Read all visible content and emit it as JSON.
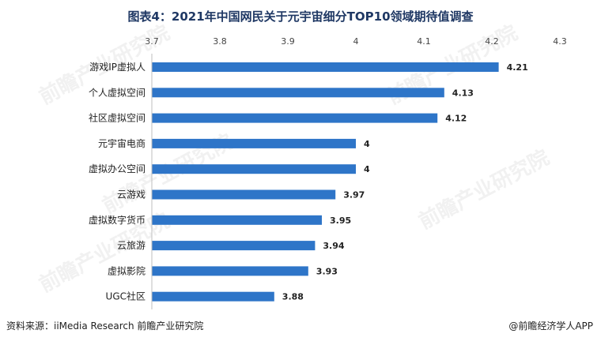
{
  "chart_data": {
    "type": "bar",
    "orientation": "horizontal",
    "title": "图表4：2021年中国网民关于元宇宙细分TOP10领域期待值调查",
    "categories": [
      "游戏IP虚拟人",
      "个人虚拟空间",
      "社区虚拟空间",
      "元宇宙电商",
      "虚拟办公空间",
      "云游戏",
      "虚拟数字货币",
      "云旅游",
      "虚拟影院",
      "UGC社区"
    ],
    "values": [
      4.21,
      4.13,
      4.12,
      4,
      4,
      3.97,
      3.95,
      3.94,
      3.93,
      3.88
    ],
    "value_labels": [
      "4.21",
      "4.13",
      "4.12",
      "4",
      "4",
      "3.97",
      "3.95",
      "3.94",
      "3.93",
      "3.88"
    ],
    "xlim": [
      3.7,
      4.3
    ],
    "x_ticks": [
      "3.7",
      "3.8",
      "3.9",
      "4",
      "4.1",
      "4.2",
      "4.3"
    ],
    "axis_position": "top",
    "grid": false,
    "bar_color": "#2e75c8"
  },
  "footer": {
    "source": "资料来源：iiMedia Research 前瞻产业研究院",
    "brand": "@前瞻经济学人APP"
  }
}
